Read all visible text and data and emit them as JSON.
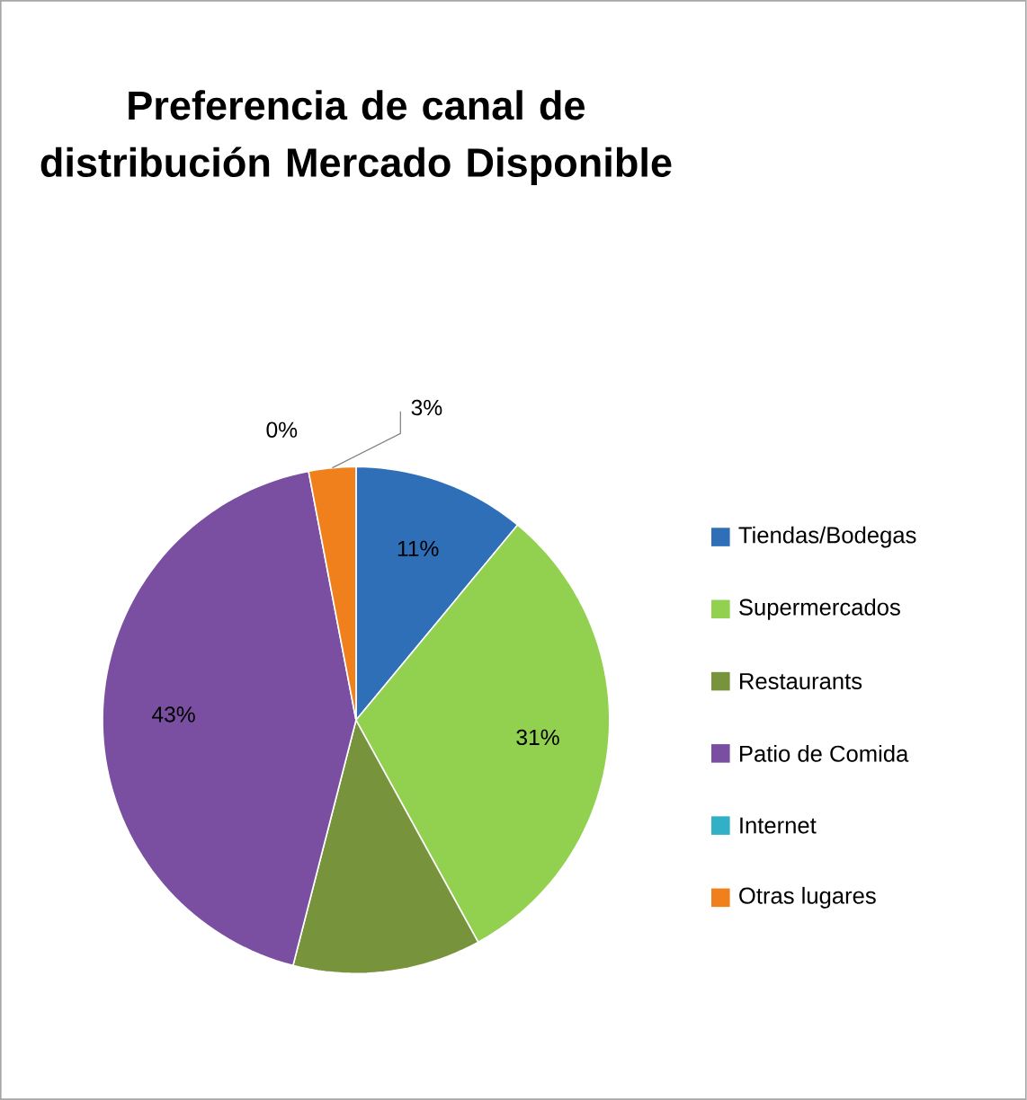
{
  "chart_data": {
    "type": "pie",
    "title": "Preferencia de canal de distribución Mercado Disponible",
    "categories": [
      "Tiendas/Bodegas",
      "Supermercados",
      "Restaurants",
      "Patio de Comida",
      "Internet",
      "Otras lugares"
    ],
    "values": [
      11,
      31,
      12,
      43,
      0,
      3
    ],
    "colors": [
      "#2f6fb8",
      "#92d050",
      "#77933c",
      "#7a4ea0",
      "#31b0c6",
      "#f0801c"
    ],
    "value_labels": [
      "11%",
      "31%",
      null,
      "43%",
      "0%",
      "3%"
    ],
    "legend": "right"
  }
}
